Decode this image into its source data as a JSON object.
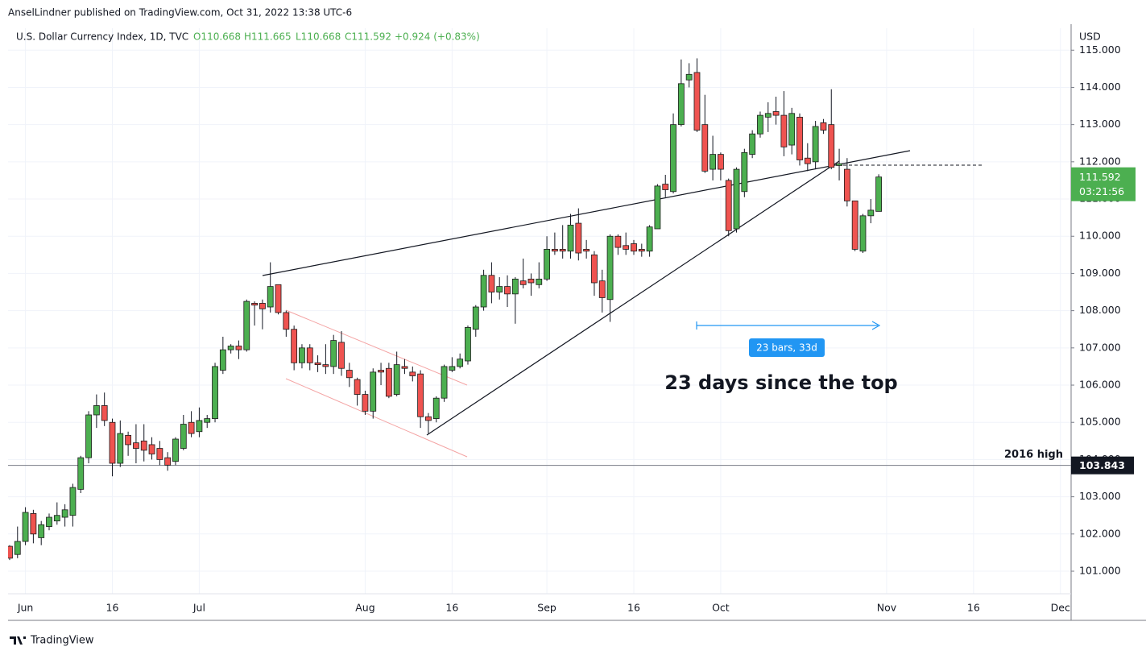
{
  "header": "AnselLindner published on TradingView.com, Oct 31, 2022 13:38 UTC-6",
  "footer": "TradingView",
  "chart_data": {
    "type": "candlestick",
    "symbol": "U.S. Dollar Currency Index, 1D, TVC",
    "legend_values": [
      "O110.668",
      "H111.665",
      "L110.668",
      "C111.592",
      "+0.924 (+0.83%)"
    ],
    "currency": "USD",
    "up_color": "#4caf50",
    "down_color": "#ef5350",
    "open": [
      101.67,
      101.45,
      101.8,
      102.55,
      101.9,
      102.2,
      102.35,
      102.45,
      102.5,
      103.2,
      104.05,
      105.2,
      105.45,
      105.0,
      103.9,
      104.65,
      104.45,
      104.5,
      104.4,
      104.3,
      104.05,
      103.95,
      104.3,
      105.0,
      104.75,
      105.0,
      105.1,
      106.4,
      106.95,
      107.05,
      106.95,
      108.2,
      108.2,
      108.1,
      108.7,
      107.95,
      107.5,
      106.6,
      107.0,
      106.6,
      106.55,
      106.5,
      107.15,
      106.4,
      106.15,
      105.75,
      105.3,
      106.4,
      106.45,
      105.75,
      106.5,
      106.35,
      106.3,
      105.15,
      105.1,
      105.65,
      106.4,
      106.5,
      106.65,
      107.5,
      108.1,
      108.95,
      108.5,
      108.65,
      108.45,
      108.8,
      108.85,
      108.7,
      108.85,
      109.65,
      109.65,
      109.6,
      110.35,
      109.65,
      109.5,
      108.8,
      108.3,
      110.0,
      109.75,
      109.8,
      109.65,
      109.6,
      110.2,
      111.4,
      111.2,
      113.0,
      114.2,
      114.4,
      113.0,
      111.8,
      112.2,
      111.5,
      110.2,
      111.2,
      112.2,
      112.75,
      113.2,
      113.35,
      113.25,
      112.45,
      113.2,
      112.1,
      112.0,
      113.05,
      113.0,
      111.9,
      111.8,
      110.95,
      109.6,
      110.55,
      110.668
    ],
    "high": [
      101.7,
      102.2,
      102.72,
      102.65,
      102.35,
      102.55,
      102.85,
      102.8,
      103.35,
      104.1,
      105.3,
      105.75,
      105.8,
      105.1,
      105.05,
      104.75,
      104.95,
      104.95,
      104.6,
      104.5,
      104.2,
      104.6,
      105.2,
      105.3,
      105.4,
      105.2,
      106.6,
      107.3,
      107.1,
      107.2,
      108.3,
      108.25,
      108.3,
      109.3,
      108.7,
      108.0,
      107.6,
      107.1,
      107.1,
      106.8,
      107.1,
      107.35,
      107.45,
      106.6,
      106.2,
      105.85,
      106.45,
      106.6,
      106.6,
      106.9,
      106.7,
      106.5,
      106.4,
      105.25,
      105.7,
      106.55,
      106.75,
      106.85,
      107.6,
      108.15,
      109.1,
      109.3,
      108.9,
      108.95,
      108.9,
      109.4,
      109.0,
      109.3,
      110.0,
      110.1,
      110.3,
      110.6,
      110.75,
      109.9,
      109.6,
      109.1,
      110.05,
      110.05,
      110.1,
      109.9,
      109.8,
      110.3,
      111.4,
      111.65,
      113.3,
      114.75,
      114.65,
      114.78,
      113.8,
      112.7,
      112.25,
      111.55,
      111.85,
      112.35,
      112.85,
      113.35,
      113.6,
      113.75,
      113.9,
      113.45,
      113.3,
      112.5,
      113.1,
      113.15,
      113.95,
      112.35,
      112.1,
      110.95,
      110.6,
      111.0,
      111.665
    ],
    "low": [
      101.3,
      101.35,
      101.7,
      101.75,
      101.7,
      102.1,
      102.25,
      102.2,
      102.2,
      103.1,
      103.9,
      104.85,
      104.9,
      103.55,
      103.8,
      104.1,
      103.9,
      103.95,
      104.0,
      103.85,
      103.7,
      103.85,
      104.25,
      104.6,
      104.6,
      104.85,
      105.0,
      106.3,
      106.85,
      106.7,
      106.9,
      107.6,
      107.5,
      107.95,
      107.9,
      107.3,
      106.4,
      106.45,
      106.4,
      106.35,
      106.3,
      106.3,
      106.25,
      105.95,
      105.45,
      105.2,
      105.1,
      106.0,
      105.65,
      105.7,
      106.3,
      106.1,
      104.85,
      104.7,
      105.0,
      105.55,
      106.35,
      106.45,
      106.55,
      107.3,
      108.0,
      108.2,
      108.3,
      108.1,
      107.65,
      108.6,
      108.4,
      108.6,
      108.8,
      109.5,
      109.4,
      109.4,
      109.35,
      109.4,
      108.4,
      107.95,
      107.7,
      109.5,
      109.5,
      109.5,
      109.45,
      109.45,
      110.2,
      111.05,
      111.15,
      112.95,
      114.0,
      112.8,
      111.7,
      111.5,
      111.5,
      110.0,
      110.1,
      111.05,
      112.1,
      112.65,
      112.8,
      113.0,
      112.15,
      112.2,
      111.9,
      111.75,
      111.8,
      112.75,
      111.8,
      111.5,
      110.8,
      109.6,
      109.55,
      110.35,
      110.668
    ],
    "close": [
      101.35,
      101.8,
      102.58,
      102.0,
      102.25,
      102.45,
      102.5,
      102.65,
      103.25,
      104.05,
      105.2,
      105.45,
      105.05,
      103.9,
      104.7,
      104.4,
      104.3,
      104.25,
      104.15,
      104.0,
      103.85,
      104.55,
      104.95,
      104.7,
      105.05,
      105.1,
      106.5,
      106.95,
      107.05,
      106.95,
      108.25,
      108.15,
      108.05,
      108.65,
      107.95,
      107.5,
      106.6,
      107.0,
      106.6,
      106.55,
      106.5,
      107.2,
      106.45,
      106.2,
      105.75,
      105.3,
      106.35,
      106.35,
      105.7,
      106.55,
      106.45,
      106.25,
      105.15,
      105.05,
      105.65,
      106.5,
      106.5,
      106.7,
      107.55,
      108.1,
      108.95,
      108.5,
      108.65,
      108.45,
      108.85,
      108.7,
      108.75,
      108.85,
      109.65,
      109.6,
      109.6,
      110.3,
      109.55,
      109.6,
      108.75,
      108.35,
      110.0,
      109.7,
      109.65,
      109.6,
      109.6,
      110.25,
      111.35,
      111.25,
      113.0,
      114.1,
      114.35,
      112.85,
      111.75,
      112.2,
      111.8,
      110.15,
      111.8,
      112.25,
      112.75,
      113.25,
      113.3,
      113.25,
      112.4,
      113.3,
      112.05,
      111.95,
      112.95,
      112.85,
      111.85,
      111.95,
      110.95,
      109.65,
      110.55,
      110.7,
      111.592
    ],
    "xlim": [
      -0.2,
      134.35
    ],
    "xticks": [
      {
        "value": 2,
        "label": "Jun"
      },
      {
        "value": 13,
        "label": "16"
      },
      {
        "value": 24,
        "label": "Jul"
      },
      {
        "value": 45,
        "label": "Aug"
      },
      {
        "value": 56,
        "label": "16"
      },
      {
        "value": 68,
        "label": "Sep"
      },
      {
        "value": 79,
        "label": "16"
      },
      {
        "value": 90,
        "label": "Oct"
      },
      {
        "value": 111,
        "label": "Nov"
      },
      {
        "value": 122,
        "label": "16"
      },
      {
        "value": 133,
        "label": "Dec"
      }
    ],
    "ylim": [
      100.394,
      115.59
    ],
    "yticks": [
      {
        "value": 101,
        "label": "101.000"
      },
      {
        "value": 102,
        "label": "102.000"
      },
      {
        "value": 103,
        "label": "103.000"
      },
      {
        "value": 104,
        "label": "104.000"
      },
      {
        "value": 105,
        "label": "105.000"
      },
      {
        "value": 106,
        "label": "106.000"
      },
      {
        "value": 107,
        "label": "107.000"
      },
      {
        "value": 108,
        "label": "108.000"
      },
      {
        "value": 109,
        "label": "109.000"
      },
      {
        "value": 110,
        "label": "110.000"
      },
      {
        "value": 111,
        "label": "111.000"
      },
      {
        "value": 112,
        "label": "112.000"
      },
      {
        "value": 113,
        "label": "113.000"
      },
      {
        "value": 114,
        "label": "114.000"
      },
      {
        "value": 115,
        "label": "115.000"
      }
    ],
    "grid": true,
    "last_price": {
      "value": 111.592,
      "label": "111.592",
      "countdown": "03:21:56",
      "color": "#4caf50"
    },
    "hline": {
      "value": 103.843,
      "label": "2016 high",
      "price_label": "103.843"
    },
    "annotations": {
      "measure": "23 bars, 33d",
      "note": "23 days since the top"
    }
  }
}
